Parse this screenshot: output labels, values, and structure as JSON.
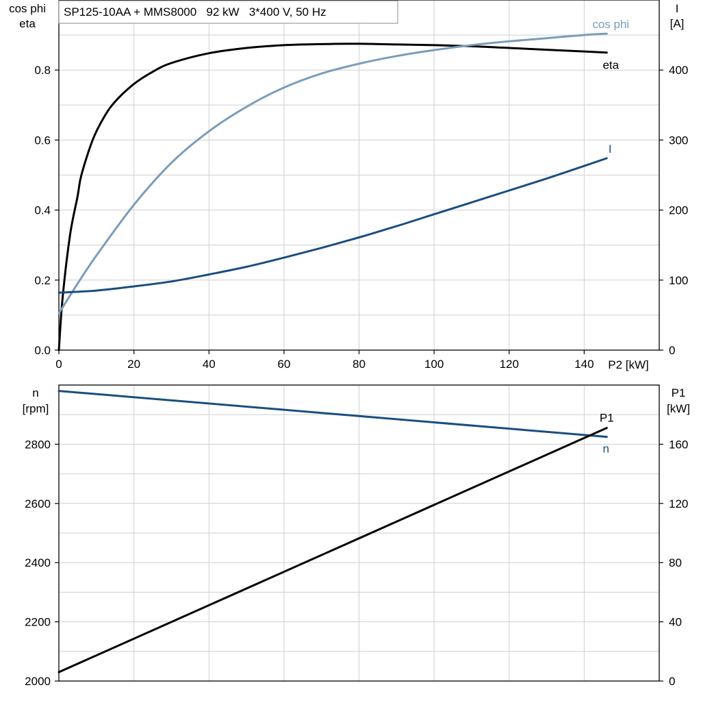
{
  "chart_data": [
    {
      "type": "line",
      "title": "SP125-10AA + MMS8000   92 kW   3*400 V, 50 Hz",
      "xlabel": "P2 [kW]",
      "xlim": [
        0,
        160
      ],
      "xticks": [
        0,
        20,
        40,
        60,
        80,
        100,
        120,
        140
      ],
      "ylabel_left": [
        "cos phi",
        "eta"
      ],
      "ylim_left": [
        0,
        1.0
      ],
      "yticks_left": [
        "0.0",
        "0.2",
        "0.4",
        "0.6",
        "0.8"
      ],
      "ylabel_right": [
        "I",
        "[A]"
      ],
      "ylim_right": [
        0,
        500
      ],
      "yticks_right": [
        "0",
        "100",
        "200",
        "300",
        "400"
      ],
      "grid": true,
      "series": [
        {
          "name": "eta",
          "axis": "left",
          "color": "#000000",
          "x": [
            0,
            1,
            3,
            5,
            6,
            9,
            12,
            15,
            20,
            25,
            30,
            40,
            50,
            60,
            70,
            80,
            90,
            100,
            110,
            120,
            130,
            140,
            146
          ],
          "y": [
            0.0,
            0.15,
            0.33,
            0.44,
            0.5,
            0.6,
            0.665,
            0.71,
            0.76,
            0.795,
            0.82,
            0.848,
            0.863,
            0.871,
            0.874,
            0.875,
            0.873,
            0.871,
            0.868,
            0.863,
            0.858,
            0.853,
            0.85
          ]
        },
        {
          "name": "cos phi",
          "axis": "left",
          "color": "#7a9cba",
          "x": [
            0,
            5,
            10,
            20,
            30,
            40,
            50,
            60,
            70,
            80,
            90,
            100,
            110,
            120,
            130,
            140,
            146
          ],
          "y": [
            0.105,
            0.19,
            0.27,
            0.415,
            0.535,
            0.625,
            0.695,
            0.75,
            0.79,
            0.818,
            0.84,
            0.857,
            0.871,
            0.882,
            0.891,
            0.9,
            0.904
          ]
        },
        {
          "name": "I",
          "axis": "right",
          "color": "#1a4d80",
          "x": [
            0,
            10,
            20,
            30,
            40,
            50,
            60,
            70,
            80,
            90,
            100,
            110,
            120,
            130,
            140,
            146
          ],
          "y": [
            82,
            85,
            91,
            98,
            108,
            119,
            132,
            146,
            161,
            177,
            194,
            211,
            228,
            245,
            263,
            274
          ]
        }
      ],
      "annotations": [
        "cos phi",
        "eta",
        "I"
      ]
    },
    {
      "type": "line",
      "xlim": [
        0,
        160
      ],
      "ylabel_left": [
        "n",
        "[rpm]"
      ],
      "ylim_left": [
        2000,
        3000
      ],
      "yticks_left": [
        "2000",
        "2200",
        "2400",
        "2600",
        "2800"
      ],
      "ylabel_right": [
        "P1",
        "[kW]"
      ],
      "ylim_right": [
        0,
        200
      ],
      "yticks_right": [
        "0",
        "40",
        "80",
        "120",
        "160"
      ],
      "grid": true,
      "series": [
        {
          "name": "n",
          "axis": "left",
          "color": "#1a4d80",
          "x": [
            0,
            146
          ],
          "y": [
            2980,
            2825
          ]
        },
        {
          "name": "P1",
          "axis": "right",
          "color": "#000000",
          "x": [
            0,
            146
          ],
          "y": [
            6,
            171
          ]
        }
      ],
      "annotations": [
        "P1",
        "n"
      ]
    }
  ]
}
